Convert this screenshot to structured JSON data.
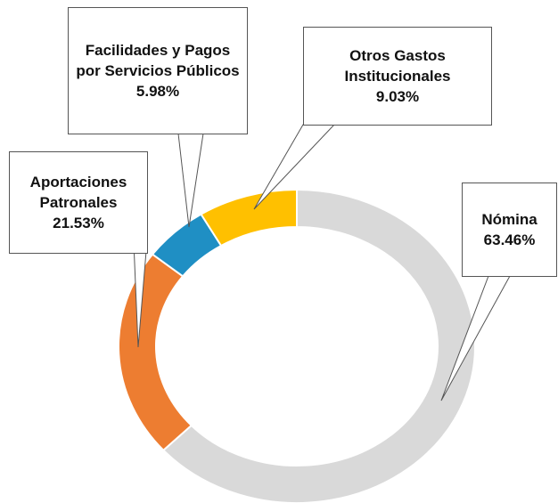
{
  "chart_data": {
    "type": "donut",
    "categories": [
      "Nómina",
      "Aportaciones Patronales",
      "Facilidades y Pagos por Servicios Públicos",
      "Otros Gastos Institucionales"
    ],
    "values": [
      63.46,
      21.53,
      5.98,
      9.03
    ],
    "value_labels": [
      "63.46%",
      "21.53%",
      "5.98%",
      "9.03%"
    ],
    "colors": [
      "#d9d9d9",
      "#ed7d31",
      "#1f8fc4",
      "#ffc000"
    ]
  }
}
